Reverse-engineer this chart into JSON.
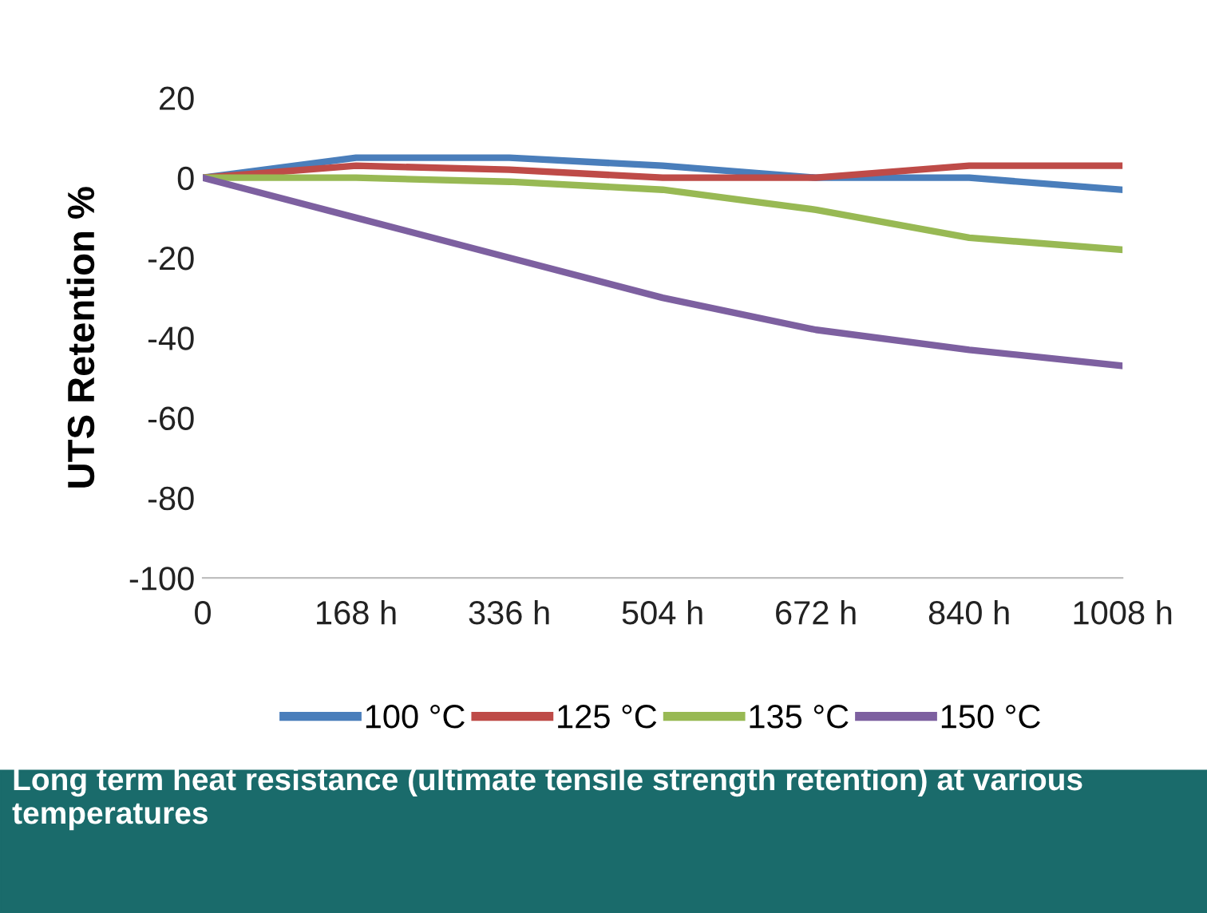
{
  "chart_data": {
    "type": "line",
    "ylabel": "UTS Retention %",
    "categories": [
      "0",
      "168 h",
      "336 h",
      "504 h",
      "672 h",
      "840 h",
      "1008 h"
    ],
    "series": [
      {
        "name": "100 °C",
        "color": "#4a7ebb",
        "values": [
          0,
          5,
          5,
          3,
          0,
          0,
          -3
        ]
      },
      {
        "name": "125 °C",
        "color": "#be4b48",
        "values": [
          0,
          3,
          2,
          0,
          0,
          3,
          3
        ]
      },
      {
        "name": "135 °C",
        "color": "#98b954",
        "values": [
          0,
          0,
          -1,
          -3,
          -8,
          -15,
          -18
        ]
      },
      {
        "name": "150 °C",
        "color": "#7d60a0",
        "values": [
          0,
          -10,
          -20,
          -30,
          -38,
          -43,
          -47
        ]
      }
    ],
    "ylim": [
      -100,
      20
    ],
    "yticks": [
      -100,
      -80,
      -60,
      -40,
      -20,
      0,
      20
    ],
    "grid": false,
    "legend": "bottom",
    "marker": "none",
    "line_style": "solid",
    "annotations": [
      "Long term heat resistance (ultimate tensile strength retention) at various temperatures"
    ]
  }
}
